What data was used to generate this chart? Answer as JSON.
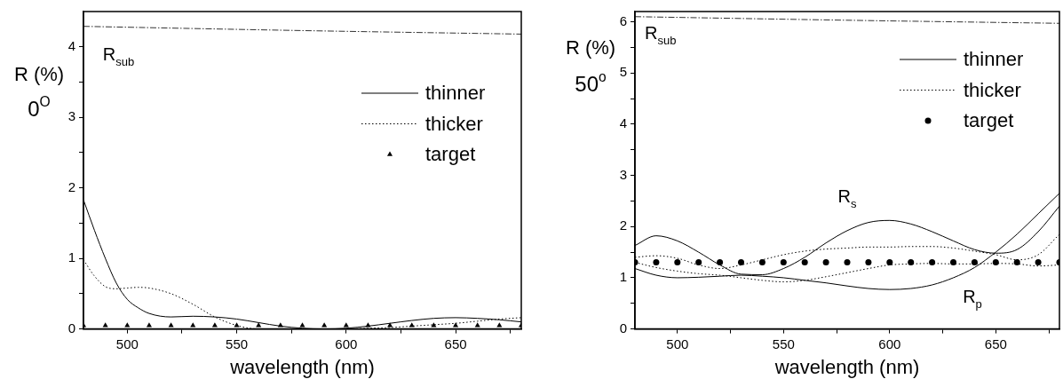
{
  "chart_data": [
    {
      "type": "line",
      "xlabel": "wavelength (nm)",
      "ylabel": "R (%)",
      "xlim": [
        480,
        680
      ],
      "ylim": [
        0,
        4.5
      ],
      "xticks": [
        500,
        {
          "value": 525,
          "label": null
        },
        550,
        {
          "value": 575,
          "label": null
        },
        600,
        {
          "value": 625,
          "label": null
        },
        650,
        {
          "value": 675,
          "label": null
        }
      ],
      "yticks": [
        0,
        {
          "value": 0.5,
          "label": null
        },
        1,
        {
          "value": 1.5,
          "label": null
        },
        2,
        {
          "value": 2.5,
          "label": null
        },
        3,
        {
          "value": 3.5,
          "label": null
        },
        4
      ],
      "legend": "top right",
      "grid": false,
      "series": [
        {
          "type": "line",
          "line_style": "dashed",
          "color": "#333333",
          "x": [
            480,
            580,
            680
          ],
          "values": [
            4.29,
            4.23,
            4.18
          ]
        },
        {
          "type": "line",
          "name": "thinner",
          "line_style": "solid",
          "color": "#000000",
          "x": [
            480,
            485,
            490,
            495,
            500,
            505,
            510,
            520,
            530,
            540,
            550,
            560,
            570,
            580,
            590,
            600,
            610,
            620,
            630,
            640,
            650,
            660,
            670,
            680
          ],
          "values": [
            1.83,
            1.4,
            1.0,
            0.65,
            0.42,
            0.3,
            0.22,
            0.17,
            0.18,
            0.17,
            0.14,
            0.09,
            0.04,
            0.01,
            0.0,
            0.01,
            0.04,
            0.08,
            0.12,
            0.15,
            0.16,
            0.15,
            0.13,
            0.1
          ]
        },
        {
          "type": "line",
          "name": "thicker",
          "line_style": "dotted",
          "color": "#000000",
          "x": [
            480,
            485,
            490,
            495,
            500,
            505,
            510,
            520,
            530,
            540,
            550,
            560,
            570,
            580,
            590,
            600,
            610,
            620,
            630,
            640,
            650,
            660,
            670,
            680
          ],
          "values": [
            0.98,
            0.75,
            0.6,
            0.57,
            0.58,
            0.59,
            0.58,
            0.5,
            0.35,
            0.17,
            0.05,
            0.0,
            0.0,
            0.0,
            0.0,
            0.0,
            0.01,
            0.02,
            0.04,
            0.06,
            0.08,
            0.11,
            0.14,
            0.16
          ]
        },
        {
          "type": "scatter",
          "name": "target",
          "marker": "triangle",
          "color": "#000000",
          "x": [
            480,
            490,
            500,
            510,
            520,
            530,
            540,
            550,
            560,
            570,
            580,
            590,
            600,
            610,
            620,
            630,
            640,
            650,
            660,
            670,
            680
          ],
          "values": [
            0.05,
            0.05,
            0.05,
            0.05,
            0.05,
            0.05,
            0.05,
            0.05,
            0.05,
            0.05,
            0.05,
            0.05,
            0.05,
            0.05,
            0.05,
            0.05,
            0.05,
            0.05,
            0.05,
            0.05,
            0.05
          ]
        }
      ],
      "annotations": [
        "0$^{O}$",
        "R$_{sub}$"
      ]
    },
    {
      "type": "line",
      "xlabel": "wavelength (nm)",
      "ylabel": "R (%)",
      "xlim": [
        480,
        680
      ],
      "ylim": [
        0,
        6.2
      ],
      "xticks": [
        500,
        {
          "value": 525,
          "label": null
        },
        550,
        {
          "value": 575,
          "label": null
        },
        600,
        {
          "value": 625,
          "label": null
        },
        650,
        {
          "value": 675,
          "label": null
        }
      ],
      "yticks": [
        0,
        {
          "value": 0.5,
          "label": null
        },
        1,
        {
          "value": 1.5,
          "label": null
        },
        2,
        {
          "value": 2.5,
          "label": null
        },
        3,
        {
          "value": 3.5,
          "label": null
        },
        4,
        {
          "value": 4.5,
          "label": null
        },
        5,
        {
          "value": 5.5,
          "label": null
        },
        6
      ],
      "legend": "top right",
      "grid": false,
      "series": [
        {
          "type": "line",
          "line_style": "dashed",
          "color": "#333333",
          "x": [
            480,
            580,
            680
          ],
          "values": [
            6.1,
            6.03,
            5.97
          ]
        },
        {
          "type": "line",
          "name": "thinner",
          "line_style": "solid",
          "color": "#000000",
          "x": [
            480,
            490,
            500,
            510,
            520,
            530,
            540,
            550,
            560,
            570,
            580,
            590,
            600,
            610,
            620,
            630,
            640,
            650,
            660,
            670,
            680
          ],
          "values": [
            1.63,
            1.82,
            1.72,
            1.5,
            1.25,
            1.07,
            1.06,
            1.18,
            1.4,
            1.68,
            1.92,
            2.08,
            2.12,
            2.05,
            1.9,
            1.72,
            1.55,
            1.48,
            1.55,
            1.9,
            2.4
          ]
        },
        {
          "type": "line",
          "line_style": "solid",
          "color": "#000000",
          "x": [
            480,
            490,
            500,
            510,
            520,
            530,
            540,
            550,
            560,
            570,
            580,
            590,
            600,
            610,
            620,
            630,
            640,
            650,
            660,
            670,
            680
          ],
          "values": [
            1.18,
            1.05,
            1.0,
            1.01,
            1.03,
            1.05,
            1.03,
            1.0,
            0.95,
            0.9,
            0.84,
            0.79,
            0.77,
            0.79,
            0.86,
            1.0,
            1.2,
            1.5,
            1.85,
            2.25,
            2.65
          ]
        },
        {
          "type": "line",
          "name": "thicker",
          "line_style": "dotted",
          "color": "#000000",
          "x": [
            480,
            490,
            500,
            510,
            520,
            530,
            540,
            550,
            560,
            570,
            580,
            590,
            600,
            610,
            620,
            630,
            640,
            650,
            660,
            670,
            680
          ],
          "values": [
            1.4,
            1.43,
            1.38,
            1.25,
            1.18,
            1.25,
            1.35,
            1.45,
            1.52,
            1.56,
            1.58,
            1.6,
            1.6,
            1.61,
            1.61,
            1.58,
            1.52,
            1.45,
            1.35,
            1.45,
            1.85
          ]
        },
        {
          "type": "line",
          "line_style": "dotted",
          "color": "#000000",
          "x": [
            480,
            490,
            500,
            510,
            520,
            530,
            540,
            550,
            560,
            570,
            580,
            590,
            600,
            610,
            620,
            630,
            640,
            650,
            660,
            670,
            680
          ],
          "values": [
            1.3,
            1.2,
            1.13,
            1.08,
            1.05,
            1.0,
            0.95,
            0.92,
            0.95,
            1.02,
            1.1,
            1.18,
            1.25,
            1.27,
            1.28,
            1.27,
            1.27,
            1.28,
            1.27,
            1.23,
            1.25
          ]
        },
        {
          "type": "scatter",
          "name": "target",
          "marker": "circle",
          "color": "#000000",
          "x": [
            480,
            490,
            500,
            510,
            520,
            530,
            540,
            550,
            560,
            570,
            580,
            590,
            600,
            610,
            620,
            630,
            640,
            650,
            660,
            670,
            680
          ],
          "values": [
            1.3,
            1.3,
            1.3,
            1.3,
            1.3,
            1.3,
            1.3,
            1.3,
            1.3,
            1.3,
            1.3,
            1.3,
            1.3,
            1.3,
            1.3,
            1.3,
            1.3,
            1.3,
            1.3,
            1.3,
            1.3
          ]
        }
      ],
      "annotations": [
        "50$^{o}$",
        "R$_{sub}$",
        "R$_{s}$",
        "R$_{p}$"
      ]
    }
  ]
}
